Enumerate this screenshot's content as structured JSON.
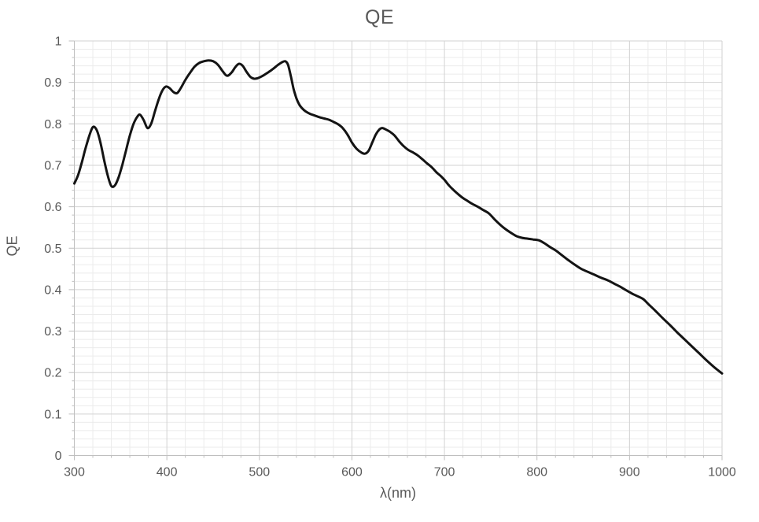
{
  "chart_data": {
    "type": "line",
    "title": "QE",
    "xlabel": "λ(nm)",
    "ylabel": "QE",
    "xlim": [
      300,
      1000
    ],
    "ylim": [
      0,
      1
    ],
    "x_major_step": 100,
    "x_minor_step": 20,
    "y_major_step": 0.1,
    "y_minor_step": 0.02,
    "x_tick_labels": [
      "300",
      "400",
      "500",
      "600",
      "700",
      "800",
      "900",
      "1000"
    ],
    "y_tick_labels": [
      "0",
      "0.1",
      "0.2",
      "0.3",
      "0.4",
      "0.5",
      "0.6",
      "0.7",
      "0.8",
      "0.9",
      "1"
    ],
    "grid": true,
    "legend_position": "none",
    "colors": {
      "line": "#141414",
      "major_grid": "#d2d2d2",
      "minor_grid": "#ebebeb",
      "axis": "#bfbfbf",
      "text": "#595959"
    },
    "series": [
      {
        "name": "QE",
        "points": [
          [
            300,
            0.656
          ],
          [
            304,
            0.676
          ],
          [
            308,
            0.706
          ],
          [
            312,
            0.74
          ],
          [
            316,
            0.77
          ],
          [
            320,
            0.792
          ],
          [
            324,
            0.786
          ],
          [
            328,
            0.757
          ],
          [
            332,
            0.715
          ],
          [
            336,
            0.676
          ],
          [
            340,
            0.65
          ],
          [
            344,
            0.652
          ],
          [
            348,
            0.672
          ],
          [
            352,
            0.702
          ],
          [
            356,
            0.737
          ],
          [
            360,
            0.772
          ],
          [
            364,
            0.8
          ],
          [
            368,
            0.817
          ],
          [
            371,
            0.822
          ],
          [
            375,
            0.809
          ],
          [
            379,
            0.79
          ],
          [
            383,
            0.8
          ],
          [
            387,
            0.829
          ],
          [
            391,
            0.858
          ],
          [
            395,
            0.88
          ],
          [
            399,
            0.89
          ],
          [
            403,
            0.886
          ],
          [
            407,
            0.877
          ],
          [
            411,
            0.874
          ],
          [
            415,
            0.886
          ],
          [
            420,
            0.906
          ],
          [
            425,
            0.923
          ],
          [
            430,
            0.938
          ],
          [
            435,
            0.947
          ],
          [
            440,
            0.951
          ],
          [
            445,
            0.953
          ],
          [
            450,
            0.951
          ],
          [
            455,
            0.943
          ],
          [
            460,
            0.928
          ],
          [
            465,
            0.916
          ],
          [
            470,
            0.924
          ],
          [
            474,
            0.937
          ],
          [
            478,
            0.945
          ],
          [
            482,
            0.94
          ],
          [
            486,
            0.926
          ],
          [
            490,
            0.914
          ],
          [
            494,
            0.909
          ],
          [
            498,
            0.91
          ],
          [
            502,
            0.914
          ],
          [
            506,
            0.919
          ],
          [
            510,
            0.925
          ],
          [
            515,
            0.933
          ],
          [
            520,
            0.942
          ],
          [
            524,
            0.948
          ],
          [
            528,
            0.951
          ],
          [
            531,
            0.942
          ],
          [
            534,
            0.915
          ],
          [
            537,
            0.884
          ],
          [
            540,
            0.862
          ],
          [
            543,
            0.847
          ],
          [
            546,
            0.838
          ],
          [
            550,
            0.83
          ],
          [
            555,
            0.824
          ],
          [
            560,
            0.82
          ],
          [
            565,
            0.816
          ],
          [
            570,
            0.813
          ],
          [
            575,
            0.81
          ],
          [
            580,
            0.805
          ],
          [
            585,
            0.799
          ],
          [
            590,
            0.79
          ],
          [
            595,
            0.775
          ],
          [
            600,
            0.755
          ],
          [
            605,
            0.74
          ],
          [
            610,
            0.731
          ],
          [
            614,
            0.728
          ],
          [
            618,
            0.735
          ],
          [
            622,
            0.755
          ],
          [
            626,
            0.775
          ],
          [
            630,
            0.787
          ],
          [
            633,
            0.79
          ],
          [
            637,
            0.786
          ],
          [
            641,
            0.781
          ],
          [
            646,
            0.772
          ],
          [
            651,
            0.758
          ],
          [
            656,
            0.746
          ],
          [
            661,
            0.737
          ],
          [
            666,
            0.731
          ],
          [
            671,
            0.724
          ],
          [
            676,
            0.715
          ],
          [
            681,
            0.705
          ],
          [
            686,
            0.696
          ],
          [
            691,
            0.684
          ],
          [
            696,
            0.674
          ],
          [
            700,
            0.665
          ],
          [
            705,
            0.651
          ],
          [
            710,
            0.64
          ],
          [
            715,
            0.63
          ],
          [
            720,
            0.621
          ],
          [
            725,
            0.614
          ],
          [
            730,
            0.607
          ],
          [
            736,
            0.6
          ],
          [
            742,
            0.592
          ],
          [
            748,
            0.584
          ],
          [
            754,
            0.57
          ],
          [
            760,
            0.557
          ],
          [
            766,
            0.546
          ],
          [
            772,
            0.537
          ],
          [
            778,
            0.529
          ],
          [
            784,
            0.525
          ],
          [
            790,
            0.523
          ],
          [
            796,
            0.521
          ],
          [
            802,
            0.519
          ],
          [
            808,
            0.512
          ],
          [
            814,
            0.503
          ],
          [
            820,
            0.495
          ],
          [
            827,
            0.483
          ],
          [
            834,
            0.471
          ],
          [
            841,
            0.46
          ],
          [
            848,
            0.45
          ],
          [
            855,
            0.443
          ],
          [
            862,
            0.436
          ],
          [
            869,
            0.429
          ],
          [
            876,
            0.423
          ],
          [
            883,
            0.415
          ],
          [
            890,
            0.407
          ],
          [
            896,
            0.399
          ],
          [
            900,
            0.394
          ],
          [
            905,
            0.388
          ],
          [
            910,
            0.383
          ],
          [
            915,
            0.377
          ],
          [
            920,
            0.366
          ],
          [
            928,
            0.349
          ],
          [
            936,
            0.331
          ],
          [
            944,
            0.314
          ],
          [
            952,
            0.296
          ],
          [
            960,
            0.279
          ],
          [
            968,
            0.262
          ],
          [
            976,
            0.245
          ],
          [
            984,
            0.228
          ],
          [
            992,
            0.212
          ],
          [
            1000,
            0.198
          ]
        ]
      }
    ]
  }
}
